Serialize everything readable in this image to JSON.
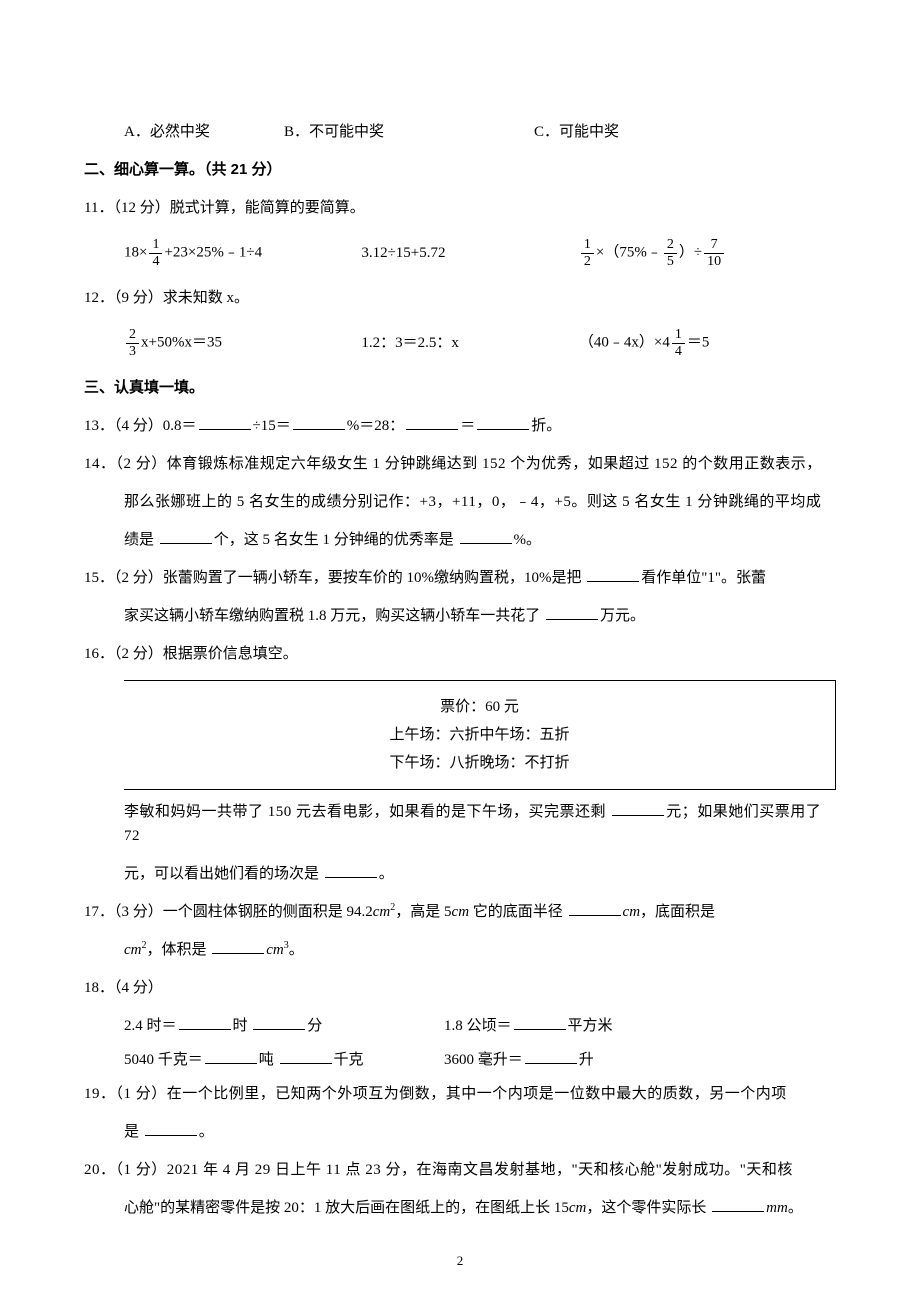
{
  "q10_choices": {
    "a": "A．必然中奖",
    "b": "B．不可能中奖",
    "c": "C．可能中奖"
  },
  "section2": {
    "heading": "二、细心算一算。（共 21 分）"
  },
  "q11": {
    "prompt": "11．（12 分）脱式计算，能简算的要简算。",
    "e1_a": "18×",
    "e1_b": "+23×25%﹣1÷4",
    "e2": "3.12÷15+5.72",
    "e3_a": "×（75%﹣",
    "e3_b": "）÷",
    "f1n": "1",
    "f1d": "4",
    "f2n": "1",
    "f2d": "2",
    "f3n": "2",
    "f3d": "5",
    "f4n": "7",
    "f4d": "10"
  },
  "q12": {
    "prompt": "12．（9 分）求未知数 x。",
    "e1_b": "x+50%x＝35",
    "e2": "1.2：3＝2.5：x",
    "e3_a": "（40﹣4x）×4",
    "e3_b": "＝5",
    "f1n": "2",
    "f1d": "3",
    "f2n": "1",
    "f2d": "4"
  },
  "section3": {
    "heading": "三、认真填一填。"
  },
  "q13": {
    "prompt_a": "13．（4 分）0.8＝",
    "prompt_b": "÷15＝",
    "prompt_c": "%＝28：",
    "prompt_d": "＝",
    "prompt_e": "折。"
  },
  "q14": {
    "l1": "14．（2 分）体育锻炼标准规定六年级女生 1 分钟跳绳达到 152 个为优秀，如果超过 152 的个数用正数表示，",
    "l2": "那么张娜班上的 5 名女生的成绩分别记作：+3，+11，0，﹣4，+5。则这 5 名女生 1 分钟跳绳的平均成",
    "l3a": "绩是 ",
    "l3b": "个，这 5 名女生 1 分钟绳的优秀率是 ",
    "l3c": "%。"
  },
  "q15": {
    "l1a": "15．（2 分）张蕾购置了一辆小轿车，要按车价的 10%缴纳购置税，10%是把 ",
    "l1b": "看作单位\"1\"。张蕾",
    "l2a": "家买这辆小轿车缴纳购置税 1.8 万元，购买这辆小轿车一共花了 ",
    "l2b": "万元。"
  },
  "q16": {
    "prompt": "16．（2 分）根据票价信息填空。",
    "r1": "票价：60 元",
    "r2": "上午场：六折中午场：五折",
    "r3": "下午场：八折晚场：不打折",
    "l1a": "李敏和妈妈一共带了 150 元去看电影，如果看的是下午场，买完票还剩 ",
    "l1b": "元；如果她们买票用了 72",
    "l2a": "元，可以看出她们看的场次是 ",
    "l2b": "。"
  },
  "q17": {
    "l1a": "17．（3 分）一个圆柱体钢胚的侧面积是 94.2",
    "l1b": "，高是 5",
    "l1c": " 它的底面半径 ",
    "l1d": "，底面积是",
    "l2a": "，体积是 ",
    "l2b": "。",
    "cm": "cm",
    "cm2": "cm",
    "cm3": "cm"
  },
  "q18": {
    "prompt": "18．（4 分）",
    "r1a": "2.4 时＝",
    "r1b": "时 ",
    "r1c": "分",
    "r1d": "1.8 公顷＝",
    "r1e": "平方米",
    "r2a": "5040 千克＝",
    "r2b": "吨 ",
    "r2c": "千克",
    "r2d": "3600 毫升＝",
    "r2e": "升"
  },
  "q19": {
    "l1": "19．（1 分）在一个比例里，已知两个外项互为倒数，其中一个内项是一位数中最大的质数，另一个内项",
    "l2a": "是 ",
    "l2b": "。"
  },
  "q20": {
    "l1": "20．（1 分）2021 年 4 月 29 日上午 11 点 23 分，在海南文昌发射基地，\"天和核心舱\"发射成功。\"天和核",
    "l2a": "心舱\"的某精密零件是按 20：1 放大后画在图纸上的，在图纸上长 15",
    "l2b": "，这个零件实际长 ",
    "l2c": "。",
    "cm": "cm",
    "mm": "mm"
  },
  "page_num": "2"
}
